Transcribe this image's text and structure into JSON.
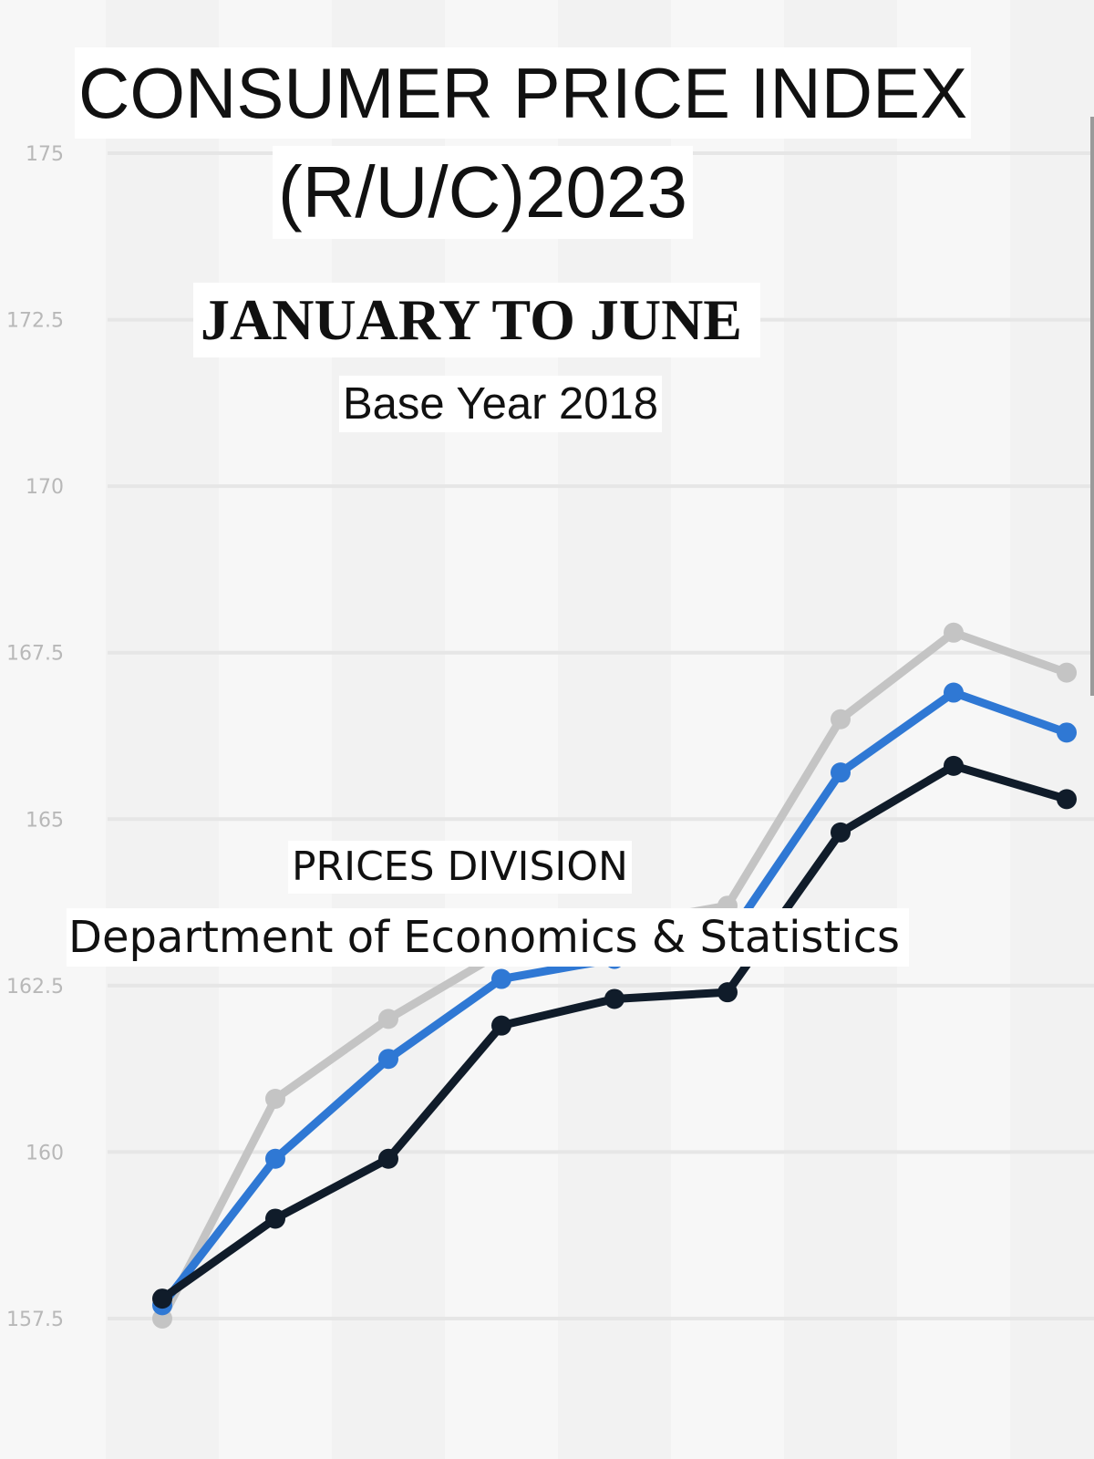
{
  "header": {
    "title_line1": "CONSUMER PRICE INDEX",
    "title_line2": "(R/U/C)2023",
    "subtitle": "JANUARY TO JUNE",
    "base_year": "Base Year 2018"
  },
  "footer": {
    "division": "PRICES DIVISION",
    "department": "Department of Economics & Statistics"
  },
  "colors": {
    "background": "#f7f7f7",
    "rural": "#c4c4c4",
    "combined": "#2f78d4",
    "urban": "#101c2a"
  },
  "chart_data": {
    "type": "line",
    "y_ticks": [
      "157.5",
      "160",
      "162.5",
      "165",
      "167.5",
      "170",
      "172.5",
      "175"
    ],
    "ylim": [
      157.5,
      175
    ],
    "grid": true,
    "x": [
      1,
      2,
      3,
      4,
      5,
      6,
      7,
      8,
      9
    ],
    "series": [
      {
        "color": "#c4c4c4",
        "values": [
          157.5,
          160.8,
          162.0,
          163.0,
          163.4,
          163.7,
          166.5,
          167.8,
          167.2
        ]
      },
      {
        "color": "#2f78d4",
        "values": [
          157.7,
          159.9,
          161.4,
          162.6,
          162.9,
          163.2,
          165.7,
          166.9,
          166.3
        ]
      },
      {
        "color": "#101c2a",
        "values": [
          157.8,
          159.0,
          159.9,
          161.9,
          162.3,
          162.4,
          164.8,
          165.8,
          165.3
        ]
      }
    ]
  }
}
